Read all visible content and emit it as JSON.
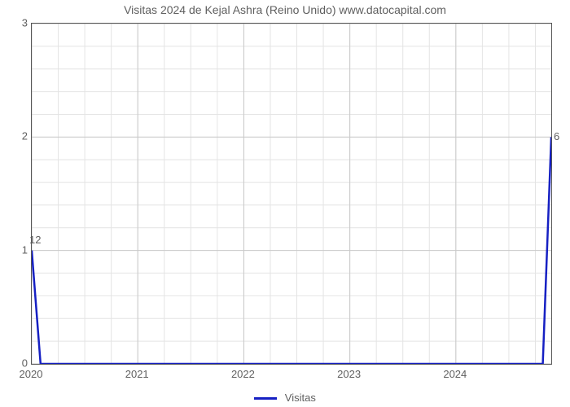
{
  "chart": {
    "type": "line",
    "title": "Visitas 2024 de Kejal Ashra (Reino Unido) www.datocapital.com",
    "title_fontsize": 14,
    "title_color": "#5f5f5f",
    "background_color": "#ffffff",
    "plot_border_color": "#555555",
    "grid_major_color": "#c9c9c9",
    "grid_minor_color": "#e4e4e4",
    "x": {
      "min": 2020,
      "max": 2024.9,
      "major_ticks": [
        2020,
        2021,
        2022,
        2023,
        2024
      ],
      "minor_step": 0.25,
      "label_fontsize": 13,
      "label_color": "#5f5f5f"
    },
    "y": {
      "min": 0,
      "max": 3,
      "major_ticks": [
        0,
        1,
        2,
        3
      ],
      "minor_step": 0.2,
      "label_fontsize": 13,
      "label_color": "#5f5f5f"
    },
    "series": {
      "name": "Visitas",
      "color": "#1620c3",
      "line_width": 2.5,
      "points": [
        {
          "x": 2020.0,
          "y": 1.0
        },
        {
          "x": 2020.083,
          "y": 0.0
        },
        {
          "x": 2024.82,
          "y": 0.0
        },
        {
          "x": 2024.9,
          "y": 2.0
        }
      ]
    },
    "endpoint_labels": {
      "start": "12",
      "end": "6"
    },
    "legend_label": "Visitas"
  }
}
